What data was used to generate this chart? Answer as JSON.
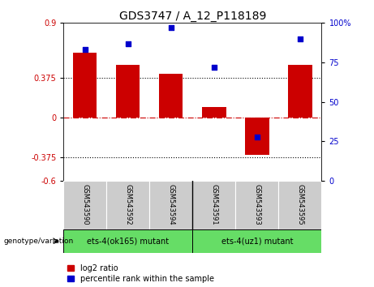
{
  "title": "GDS3747 / A_12_P118189",
  "categories": [
    "GSM543590",
    "GSM543592",
    "GSM543594",
    "GSM543591",
    "GSM543593",
    "GSM543595"
  ],
  "log2_ratio": [
    0.62,
    0.5,
    0.42,
    0.1,
    -0.35,
    0.5
  ],
  "percentile_rank": [
    83,
    87,
    97,
    72,
    28,
    90
  ],
  "bar_color": "#cc0000",
  "dot_color": "#0000cc",
  "ylim_left": [
    -0.6,
    0.9
  ],
  "ylim_right": [
    0,
    100
  ],
  "yticks_left": [
    -0.6,
    -0.375,
    0,
    0.375,
    0.9
  ],
  "ytick_labels_left": [
    "-0.6",
    "-0.375",
    "0",
    "0.375",
    "0.9"
  ],
  "yticks_right": [
    0,
    25,
    50,
    75,
    100
  ],
  "ytick_labels_right": [
    "0",
    "25",
    "50",
    "75",
    "100%"
  ],
  "hlines": [
    0.375,
    -0.375
  ],
  "hline_zero_color": "#cc0000",
  "hline_dotted_color": "#000000",
  "group1_label": "ets-4(ok165) mutant",
  "group2_label": "ets-4(uz1) mutant",
  "group1_indices": [
    0,
    1,
    2
  ],
  "group2_indices": [
    3,
    4,
    5
  ],
  "group_bg_color": "#66dd66",
  "group_text_color": "#000000",
  "legend_label_bar": "log2 ratio",
  "legend_label_dot": "percentile rank within the sample",
  "genotype_label": "genotype/variation",
  "bar_width": 0.55,
  "tick_area_bg": "#cccccc",
  "title_fontsize": 10,
  "axis_fontsize": 7,
  "legend_fontsize": 7,
  "group_fontsize": 7,
  "cat_fontsize": 6
}
